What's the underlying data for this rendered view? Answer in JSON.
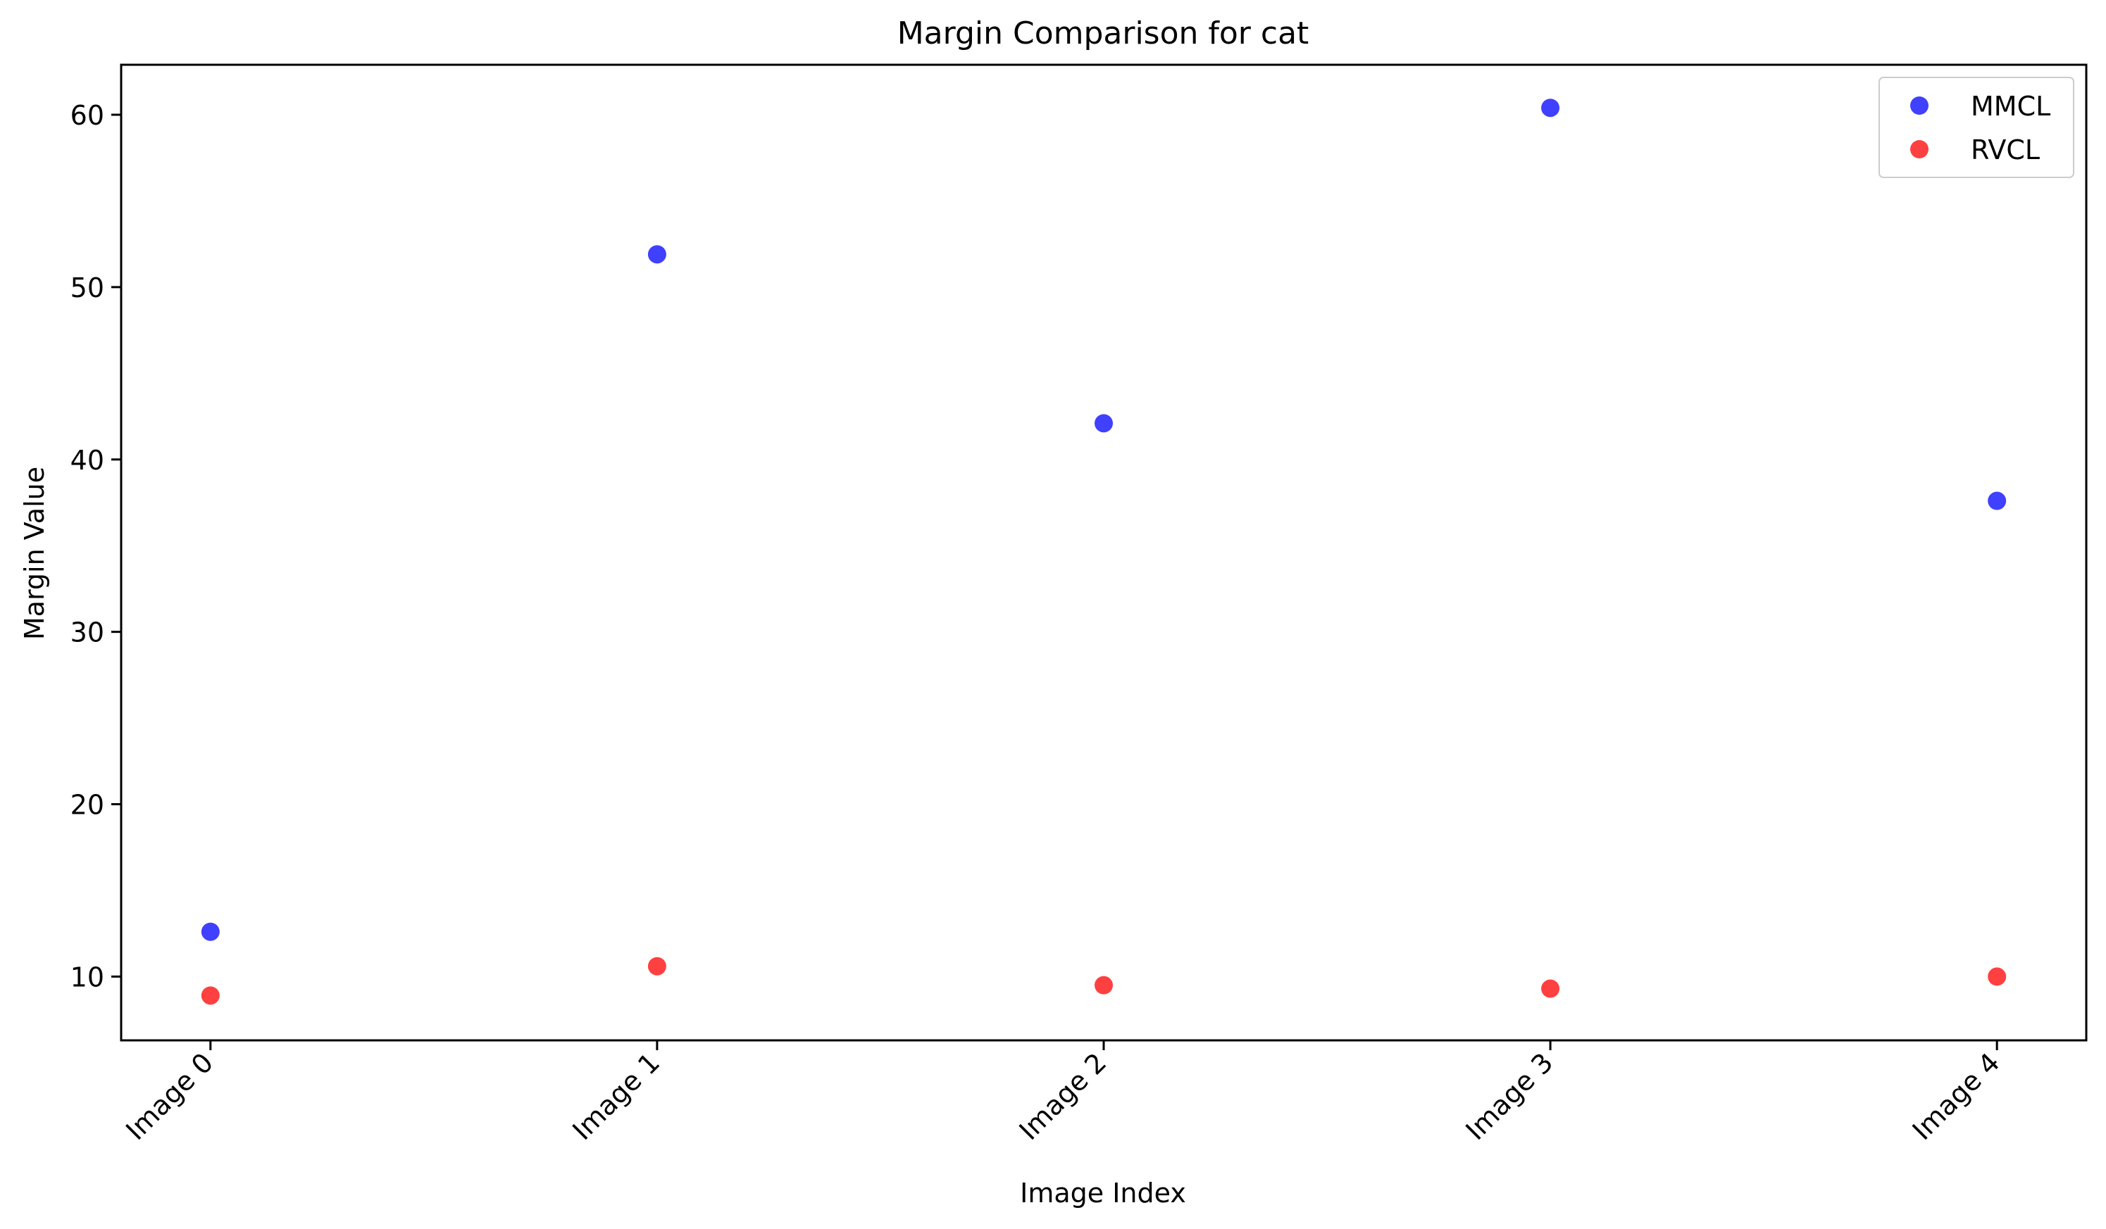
{
  "chart_data": {
    "type": "scatter",
    "title": "Margin Comparison for cat",
    "xlabel": "Image Index",
    "ylabel": "Margin Value",
    "categories": [
      "Image 0",
      "Image 1",
      "Image 2",
      "Image 3",
      "Image 4"
    ],
    "x": [
      0,
      1,
      2,
      3,
      4
    ],
    "xlim": [
      -0.2,
      4.2
    ],
    "ylim": [
      6.3,
      62.9
    ],
    "yticks": [
      10,
      20,
      30,
      40,
      50,
      60
    ],
    "ytick_labels": [
      "10",
      "20",
      "30",
      "40",
      "50",
      "60"
    ],
    "grid": false,
    "legend_position": "top-right",
    "series": [
      {
        "name": "MMCL",
        "color": "#0000ff",
        "values": [
          12.6,
          51.9,
          42.1,
          60.4,
          37.6
        ]
      },
      {
        "name": "RVCL",
        "color": "#ff0000",
        "values": [
          8.9,
          10.6,
          9.5,
          9.3,
          10.0
        ]
      }
    ]
  }
}
